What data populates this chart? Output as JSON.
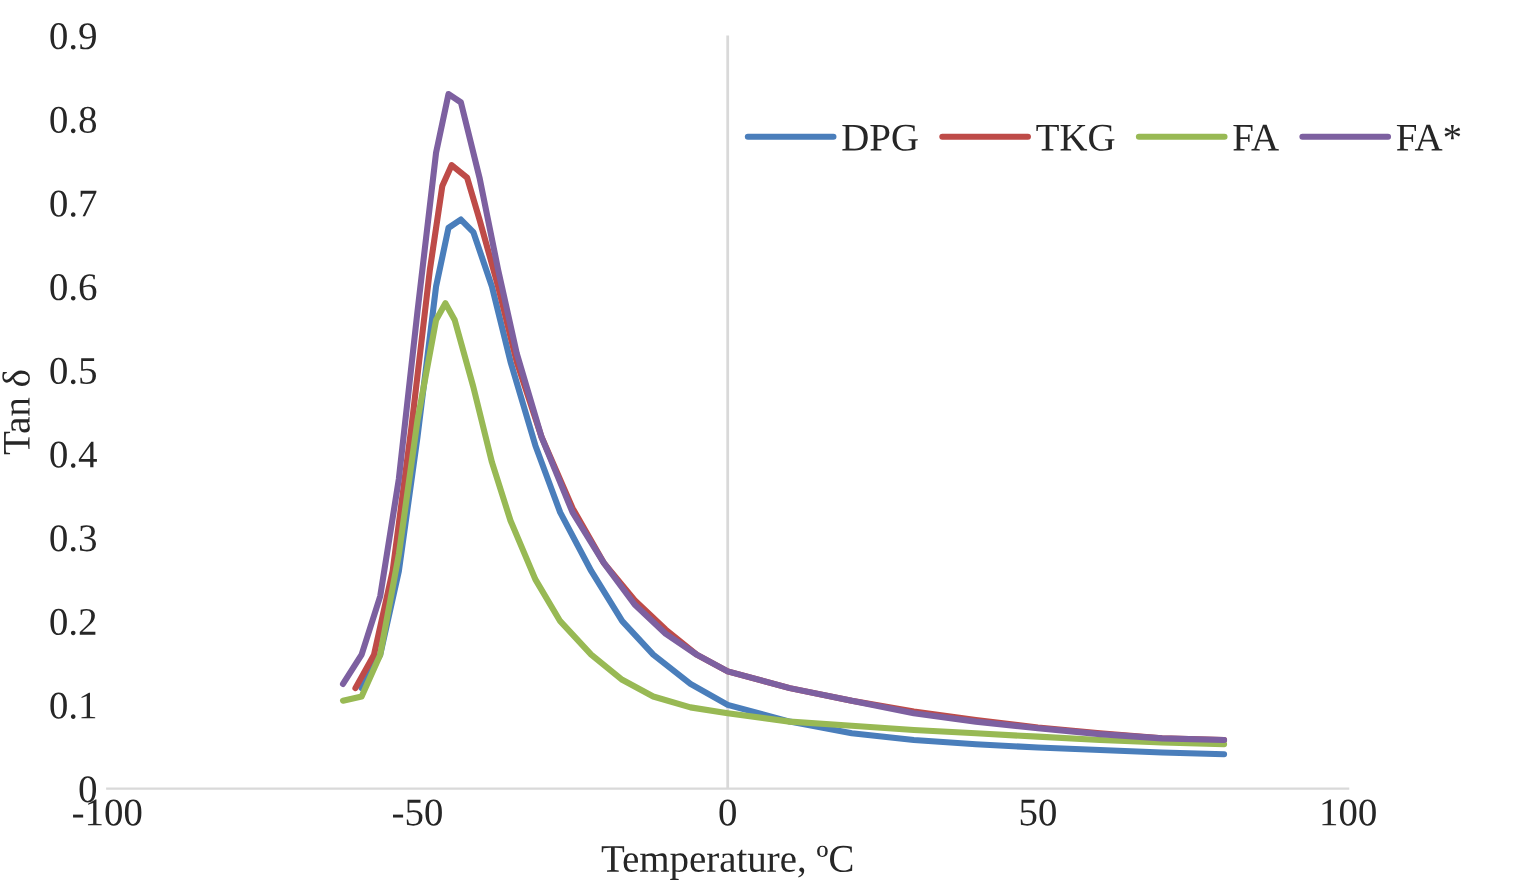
{
  "chart_data": {
    "type": "line",
    "xlabel": "Temperature, ºC",
    "ylabel": "Tan δ",
    "xlim": [
      -100,
      100
    ],
    "xticks": [
      -100,
      -50,
      0,
      50,
      100
    ],
    "ylim": [
      0,
      0.9
    ],
    "yticks": [
      0,
      0.1,
      0.2,
      0.3,
      0.4,
      0.5,
      0.6,
      0.7,
      0.8,
      0.9
    ],
    "grid": false,
    "legend": "top right",
    "marker": "none",
    "line_style": "solid",
    "ref_lines": [
      {
        "axis": "x",
        "value": 0,
        "color": "#d9d9d9"
      }
    ],
    "series": [
      {
        "name": "DPG",
        "color": "#4a7ebb",
        "x": [
          -59,
          -56,
          -53,
          -50,
          -47,
          -45,
          -43,
          -41,
          -38,
          -35,
          -31,
          -27,
          -22,
          -17,
          -12,
          -6,
          0,
          10,
          20,
          30,
          40,
          50,
          60,
          70,
          80
        ],
        "values": [
          0.12,
          0.16,
          0.26,
          0.42,
          0.6,
          0.67,
          0.68,
          0.665,
          0.6,
          0.51,
          0.41,
          0.33,
          0.26,
          0.2,
          0.16,
          0.125,
          0.1,
          0.08,
          0.066,
          0.058,
          0.053,
          0.049,
          0.046,
          0.043,
          0.041
        ]
      },
      {
        "name": "TKG",
        "color": "#be4b48",
        "x": [
          -60,
          -57,
          -54,
          -51,
          -48,
          -46,
          -44.5,
          -42,
          -40,
          -37,
          -34,
          -30,
          -25,
          -20,
          -15,
          -10,
          -5,
          0,
          10,
          20,
          30,
          40,
          50,
          60,
          70,
          80
        ],
        "values": [
          0.12,
          0.16,
          0.26,
          0.43,
          0.62,
          0.72,
          0.745,
          0.73,
          0.68,
          0.6,
          0.51,
          0.42,
          0.335,
          0.27,
          0.225,
          0.19,
          0.16,
          0.14,
          0.12,
          0.105,
          0.092,
          0.082,
          0.073,
          0.066,
          0.06,
          0.058
        ]
      },
      {
        "name": "FA",
        "color": "#98b954",
        "x": [
          -62,
          -59,
          -56,
          -53,
          -50,
          -47,
          -45.5,
          -44,
          -41,
          -38,
          -35,
          -31,
          -27,
          -22,
          -17,
          -12,
          -6,
          0,
          10,
          20,
          30,
          40,
          50,
          60,
          70,
          80
        ],
        "values": [
          0.105,
          0.11,
          0.16,
          0.28,
          0.44,
          0.56,
          0.58,
          0.56,
          0.48,
          0.39,
          0.32,
          0.25,
          0.2,
          0.16,
          0.13,
          0.11,
          0.097,
          0.09,
          0.08,
          0.075,
          0.07,
          0.066,
          0.062,
          0.058,
          0.055,
          0.053
        ]
      },
      {
        "name": "FA*",
        "color": "#7d60a0",
        "x": [
          -62,
          -59,
          -56,
          -53,
          -50,
          -47,
          -45,
          -43,
          -40,
          -37,
          -34,
          -30,
          -25,
          -20,
          -15,
          -10,
          -5,
          0,
          10,
          20,
          30,
          40,
          50,
          60,
          70,
          80
        ],
        "values": [
          0.125,
          0.16,
          0.23,
          0.37,
          0.57,
          0.76,
          0.83,
          0.82,
          0.73,
          0.62,
          0.52,
          0.42,
          0.33,
          0.27,
          0.22,
          0.185,
          0.16,
          0.14,
          0.12,
          0.105,
          0.09,
          0.08,
          0.072,
          0.065,
          0.06,
          0.058
        ]
      }
    ]
  }
}
